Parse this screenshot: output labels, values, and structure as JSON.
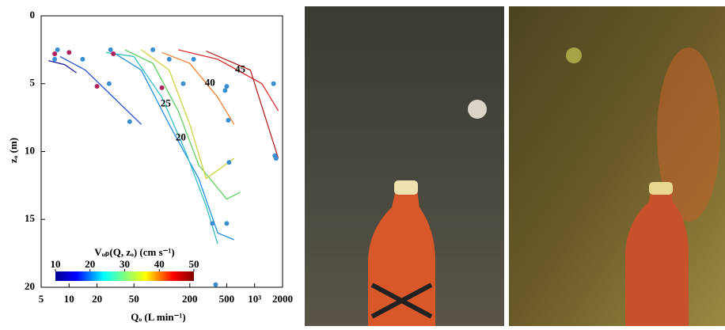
{
  "chart_data": {
    "type": "line",
    "x_label": "Qₒ (L min⁻¹)",
    "y_label": "zₒ (m)",
    "xlim": [
      5,
      2000
    ],
    "x_log": true,
    "xticks": [
      5,
      10,
      20,
      50,
      200,
      500,
      {
        "value": 1000,
        "label": "10³"
      },
      2000
    ],
    "ylim": [
      0,
      20
    ],
    "y_reversed": true,
    "yticks": [
      0,
      5,
      10,
      15,
      20
    ],
    "series": [
      {
        "color": "#1a1aa0",
        "x": [
          6,
          9,
          12
        ],
        "values": [
          3.3,
          3.6,
          4.2
        ]
      },
      {
        "color": "#2050d0",
        "x": [
          8,
          15,
          30,
          60
        ],
        "values": [
          3.0,
          4,
          6,
          8
        ]
      },
      {
        "color": "#2090e0",
        "x": [
          30,
          60,
          120,
          250,
          400,
          600
        ],
        "values": [
          2.7,
          4,
          8,
          12,
          16,
          16.5
        ]
      },
      {
        "color": "#30c0c0",
        "x": [
          25,
          50,
          100,
          180,
          300,
          400
        ],
        "values": [
          2.7,
          3,
          6,
          10,
          14,
          16.8
        ]
      },
      {
        "color": "#60d060",
        "x": [
          40,
          80,
          150,
          250,
          500,
          700
        ],
        "values": [
          2.5,
          3.5,
          7,
          11,
          13.5,
          13
        ]
      },
      {
        "color": "#d0d040",
        "x": [
          60,
          120,
          200,
          300,
          600
        ],
        "values": [
          2.5,
          4,
          8,
          12,
          10.5
        ]
      },
      {
        "color": "#f08030",
        "x": [
          100,
          200,
          400,
          600
        ],
        "values": [
          2.7,
          3.5,
          6,
          8
        ]
      },
      {
        "color": "#e03030",
        "x": [
          150,
          400,
          1200,
          1800
        ],
        "values": [
          2.5,
          3.2,
          5,
          7
        ]
      },
      {
        "color": "#b02020",
        "x": [
          300,
          900,
          1800
        ],
        "values": [
          2.6,
          4,
          10.5
        ]
      }
    ],
    "scatter_points": [
      {
        "color": "#3a8fd0",
        "x": [
          7.5,
          14,
          7,
          27,
          28,
          45,
          80,
          120,
          170,
          500,
          520,
          530,
          500,
          350,
          1600,
          1700,
          1650,
          380,
          220,
          480
        ],
        "values": [
          2.5,
          3.2,
          3.2,
          5,
          2.5,
          7.8,
          2.5,
          3.2,
          5,
          5.2,
          7.7,
          10.8,
          15.3,
          15.3,
          5,
          10.5,
          10.3,
          19.8,
          3.2,
          5.5
        ]
      },
      {
        "color": "#b0205a",
        "x": [
          7,
          10,
          20,
          30,
          100
        ],
        "values": [
          2.8,
          2.7,
          5.2,
          2.8,
          5.3
        ]
      }
    ],
    "contour_labels": [
      {
        "text": "45",
        "x": 700,
        "y": 4
      },
      {
        "text": "40",
        "x": 330,
        "y": 5
      },
      {
        "text": "25",
        "x": 110,
        "y": 6.5
      },
      {
        "text": "20",
        "x": 160,
        "y": 9
      }
    ],
    "colorbar": {
      "title": "Vᵤₚ(Q, zₒ) (cm s⁻¹)",
      "clim": [
        10,
        50
      ],
      "ticks": [
        10,
        20,
        30,
        40,
        50
      ]
    }
  }
}
